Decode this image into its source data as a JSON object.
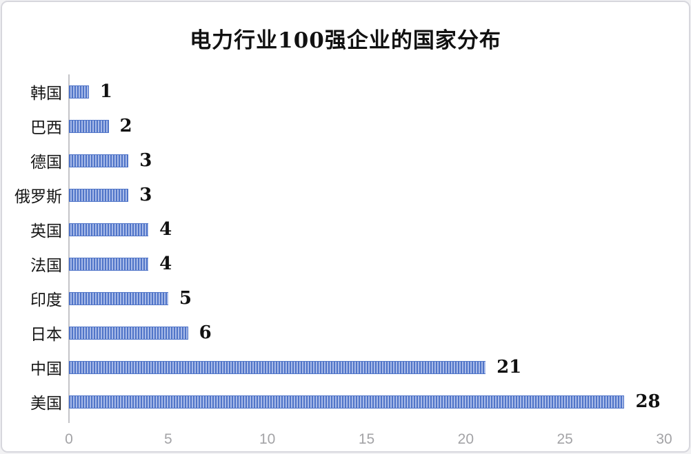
{
  "chart_data": {
    "type": "bar",
    "orientation": "horizontal",
    "title": "电力行业100强企业的国家分布",
    "categories": [
      "韩国",
      "巴西",
      "德国",
      "俄罗斯",
      "英国",
      "法国",
      "印度",
      "日本",
      "中国",
      "美国"
    ],
    "values": [
      1,
      2,
      3,
      3,
      4,
      4,
      5,
      6,
      21,
      28
    ],
    "value_labels": [
      "1",
      "2",
      "3",
      "3",
      "4",
      "4",
      "5",
      "6",
      "21",
      "28"
    ],
    "xlabel": "",
    "ylabel": "",
    "xlim": [
      0,
      30
    ],
    "x_ticks": [
      "0",
      "5",
      "10",
      "15",
      "20",
      "25",
      "30"
    ],
    "grid": false,
    "legend": false,
    "data_labels_shown": true
  },
  "colors": {
    "bar_dark": "#4f74c8",
    "bar_light": "#a9bbe8",
    "axis_line": "#c4c4c8",
    "tick_text": "#a3a3a6",
    "title_text": "#111111",
    "card_border": "#d7d7dd",
    "background": "#ffffff"
  }
}
